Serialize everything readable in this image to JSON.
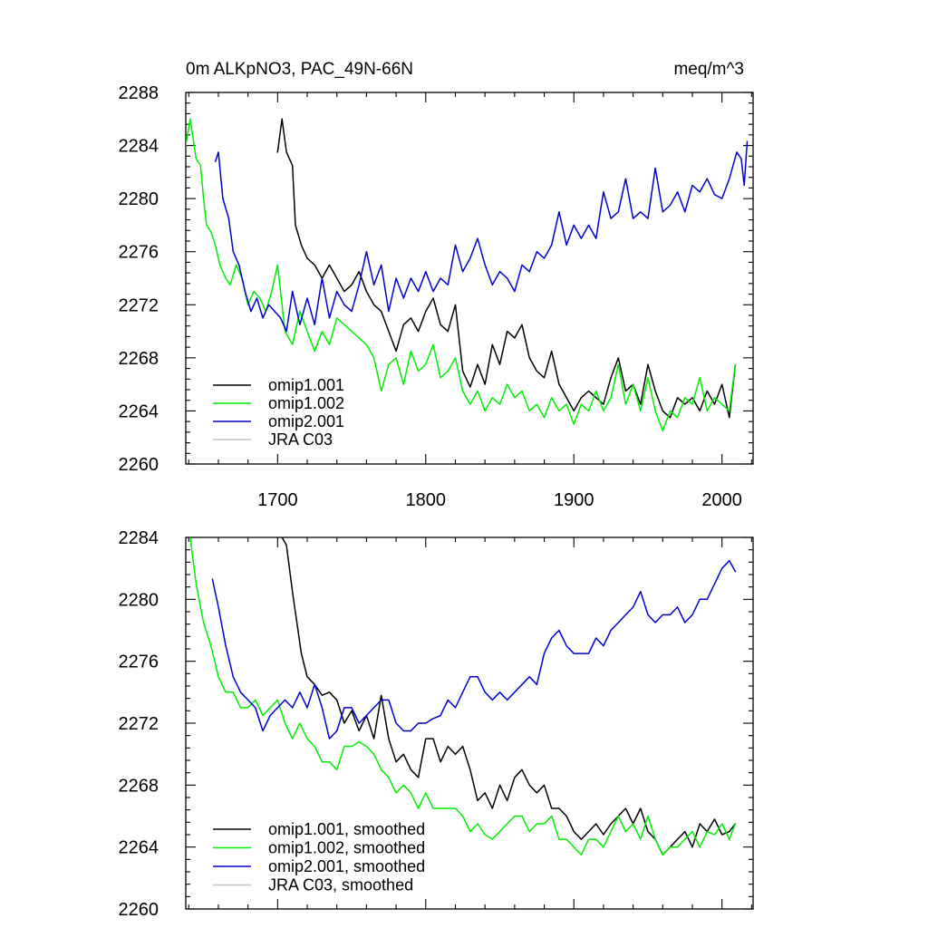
{
  "colors": {
    "omip1_001": "#000000",
    "omip1_002": "#00ee00",
    "omip2_001": "#0000cc",
    "jra_c03": "#c0c0c0"
  },
  "chart_data": [
    {
      "type": "line",
      "panel": "top",
      "title_left": "0m ALKpNO3, PAC_49N-66N",
      "title_right": "meq/m^3",
      "xlabel": "",
      "ylabel": "",
      "xlim": [
        1638,
        2021
      ],
      "ylim": [
        2260,
        2288
      ],
      "xticks": [
        1700,
        1800,
        1900,
        2000
      ],
      "xtick_labels": [
        "1700",
        "1800",
        "1900",
        "2000"
      ],
      "yticks": [
        2260,
        2264,
        2268,
        2272,
        2276,
        2280,
        2284,
        2288
      ],
      "ytick_labels": [
        "2260",
        "2264",
        "2268",
        "2272",
        "2276",
        "2280",
        "2284",
        "2288"
      ],
      "legend_position": "bottom-left",
      "series": [
        {
          "name": "omip1.001",
          "color_key": "omip1_001",
          "x": [
            1700,
            1703,
            1706,
            1710,
            1712,
            1716,
            1720,
            1725,
            1730,
            1735,
            1740,
            1745,
            1750,
            1755,
            1760,
            1765,
            1770,
            1775,
            1780,
            1785,
            1790,
            1795,
            1800,
            1805,
            1810,
            1815,
            1820,
            1825,
            1830,
            1835,
            1840,
            1845,
            1850,
            1855,
            1860,
            1865,
            1870,
            1875,
            1880,
            1885,
            1890,
            1895,
            1900,
            1905,
            1910,
            1915,
            1920,
            1925,
            1930,
            1935,
            1940,
            1945,
            1950,
            1955,
            1960,
            1965,
            1970,
            1975,
            1980,
            1985,
            1990,
            1995,
            2000,
            2005,
            2009
          ],
          "y": [
            2283.5,
            2286,
            2283.5,
            2282.5,
            2278,
            2276.5,
            2275.5,
            2275,
            2274,
            2275,
            2274,
            2273,
            2273.5,
            2274.5,
            2273,
            2272,
            2271.5,
            2270,
            2268.5,
            2270.5,
            2271,
            2270,
            2271.5,
            2272.5,
            2270.5,
            2270,
            2272,
            2267,
            2265.8,
            2267.5,
            2266,
            2269,
            2267.5,
            2270,
            2269.5,
            2270.5,
            2268,
            2267,
            2266.5,
            2268.5,
            2266,
            2265,
            2264,
            2265,
            2265.5,
            2265,
            2264.5,
            2266.5,
            2268,
            2265.5,
            2266,
            2264.5,
            2267.5,
            2265.5,
            2264,
            2263.5,
            2265,
            2264.5,
            2265,
            2264,
            2265.5,
            2264.5,
            2266,
            2263.5,
            2267.5
          ]
        },
        {
          "name": "omip1.002",
          "color_key": "omip1_002",
          "x": [
            1638,
            1641,
            1645,
            1648,
            1650,
            1652,
            1655,
            1658,
            1661,
            1665,
            1668,
            1672,
            1676,
            1680,
            1684,
            1688,
            1692,
            1696,
            1700,
            1705,
            1710,
            1715,
            1720,
            1725,
            1730,
            1735,
            1740,
            1745,
            1750,
            1755,
            1760,
            1765,
            1770,
            1775,
            1780,
            1785,
            1790,
            1795,
            1800,
            1805,
            1810,
            1815,
            1820,
            1825,
            1830,
            1835,
            1840,
            1845,
            1850,
            1855,
            1860,
            1865,
            1870,
            1875,
            1880,
            1885,
            1890,
            1895,
            1900,
            1905,
            1910,
            1915,
            1920,
            1925,
            1930,
            1935,
            1940,
            1945,
            1950,
            1955,
            1960,
            1965,
            1970,
            1975,
            1980,
            1985,
            1990,
            1995,
            2000,
            2005,
            2009
          ],
          "y": [
            2284,
            2286,
            2283,
            2282.5,
            2280,
            2278,
            2277.5,
            2276.5,
            2275,
            2274,
            2273.5,
            2275,
            2274,
            2272,
            2273,
            2272.5,
            2271.5,
            2273,
            2275,
            2270,
            2269,
            2271.5,
            2270,
            2268.5,
            2270,
            2269,
            2271,
            2270.5,
            2270,
            2269.5,
            2269,
            2268,
            2265.5,
            2267.5,
            2268,
            2266,
            2268.5,
            2267,
            2267.5,
            2269,
            2266.5,
            2267,
            2268,
            2265.5,
            2264.5,
            2265.5,
            2264,
            2265,
            2264.5,
            2266,
            2265,
            2265.5,
            2264,
            2264.5,
            2263.5,
            2265,
            2264,
            2264.5,
            2263,
            2264.5,
            2264,
            2265.5,
            2264,
            2265,
            2267.5,
            2264.5,
            2266,
            2264,
            2266.5,
            2264,
            2262.5,
            2264,
            2263.5,
            2265,
            2264.5,
            2266.5,
            2264,
            2265,
            2264.5,
            2264,
            2267.5
          ]
        },
        {
          "name": "omip2.001",
          "color_key": "omip2_001",
          "x": [
            1658,
            1660,
            1663,
            1667,
            1670,
            1674,
            1678,
            1682,
            1686,
            1690,
            1694,
            1698,
            1702,
            1706,
            1710,
            1715,
            1720,
            1725,
            1730,
            1735,
            1740,
            1745,
            1750,
            1755,
            1760,
            1765,
            1770,
            1775,
            1780,
            1785,
            1790,
            1795,
            1800,
            1805,
            1810,
            1815,
            1820,
            1825,
            1830,
            1835,
            1840,
            1845,
            1850,
            1855,
            1860,
            1865,
            1870,
            1875,
            1880,
            1885,
            1890,
            1895,
            1900,
            1905,
            1910,
            1915,
            1920,
            1925,
            1930,
            1935,
            1940,
            1945,
            1950,
            1955,
            1960,
            1965,
            1970,
            1975,
            1980,
            1985,
            1990,
            1995,
            2000,
            2005,
            2010,
            2013,
            2015,
            2017
          ],
          "y": [
            2282.8,
            2283.5,
            2280,
            2278.5,
            2276,
            2275,
            2273,
            2271.5,
            2272.5,
            2271,
            2272,
            2271.5,
            2271,
            2270,
            2273,
            2270.5,
            2272.5,
            2270.5,
            2274,
            2271,
            2273,
            2272,
            2271.5,
            2273.5,
            2276,
            2273.5,
            2275,
            2271.5,
            2274,
            2272.5,
            2274,
            2273,
            2274.5,
            2273,
            2274,
            2273.5,
            2276.5,
            2274.5,
            2275.5,
            2277,
            2275,
            2273.5,
            2274.5,
            2274,
            2273,
            2275,
            2274.5,
            2276,
            2275.5,
            2276.5,
            2279,
            2276.5,
            2278,
            2277,
            2278,
            2277,
            2280.5,
            2278.5,
            2279,
            2281.5,
            2278.5,
            2279,
            2278.5,
            2282.3,
            2279,
            2279.5,
            2280.5,
            2279,
            2281,
            2280.5,
            2281.5,
            2280.3,
            2280,
            2281.5,
            2283.5,
            2283,
            2281,
            2284.3
          ]
        },
        {
          "name": "JRA C03",
          "color_key": "jra_c03",
          "x": [],
          "y": []
        }
      ]
    },
    {
      "type": "line",
      "panel": "bottom",
      "title_left": "",
      "title_right": "",
      "xlabel": "",
      "ylabel": "",
      "xlim": [
        1638,
        2021
      ],
      "ylim": [
        2260,
        2284
      ],
      "xticks": [
        1700,
        1800,
        1900,
        2000
      ],
      "xtick_labels": [],
      "yticks": [
        2260,
        2264,
        2268,
        2272,
        2276,
        2280,
        2284
      ],
      "ytick_labels": [
        "2260",
        "2264",
        "2268",
        "2272",
        "2276",
        "2280",
        "2284"
      ],
      "legend_position": "bottom-left",
      "series": [
        {
          "name": "omip1.001, smoothed",
          "color_key": "omip1_001",
          "x": [
            1703,
            1706,
            1710,
            1713,
            1716,
            1720,
            1725,
            1730,
            1735,
            1740,
            1745,
            1750,
            1755,
            1760,
            1765,
            1770,
            1775,
            1780,
            1785,
            1790,
            1795,
            1800,
            1805,
            1810,
            1815,
            1820,
            1825,
            1830,
            1835,
            1840,
            1845,
            1850,
            1855,
            1860,
            1865,
            1870,
            1875,
            1880,
            1885,
            1890,
            1895,
            1900,
            1905,
            1910,
            1915,
            1920,
            1925,
            1930,
            1935,
            1940,
            1945,
            1950,
            1955,
            1960,
            1965,
            1970,
            1975,
            1980,
            1985,
            1990,
            1995,
            2000,
            2005,
            2009
          ],
          "y": [
            2284,
            2283.5,
            2280.5,
            2278.5,
            2276.5,
            2275,
            2274.5,
            2273.8,
            2274,
            2273.5,
            2272,
            2272.8,
            2271.5,
            2272.5,
            2271,
            2273.8,
            2271,
            2269.5,
            2270,
            2269,
            2268.5,
            2271,
            2271,
            2269.5,
            2270.5,
            2270,
            2270.5,
            2269,
            2267,
            2267.5,
            2266.5,
            2268,
            2267,
            2268.5,
            2269,
            2268,
            2267.5,
            2268,
            2266.5,
            2266.5,
            2266,
            2265,
            2264.5,
            2265,
            2265.5,
            2264.8,
            2265.5,
            2266,
            2266.5,
            2265.5,
            2266.5,
            2265,
            2264.5,
            2263.5,
            2264,
            2264.5,
            2265,
            2264,
            2265.5,
            2265,
            2265.8,
            2264.8,
            2265,
            2265.5
          ]
        },
        {
          "name": "omip1.002, smoothed",
          "color_key": "omip1_002",
          "x": [
            1641,
            1645,
            1650,
            1655,
            1660,
            1665,
            1670,
            1675,
            1680,
            1685,
            1690,
            1695,
            1700,
            1705,
            1710,
            1715,
            1720,
            1725,
            1730,
            1735,
            1740,
            1745,
            1750,
            1755,
            1760,
            1765,
            1770,
            1775,
            1780,
            1785,
            1790,
            1795,
            1800,
            1805,
            1810,
            1815,
            1820,
            1825,
            1830,
            1835,
            1840,
            1845,
            1850,
            1855,
            1860,
            1865,
            1870,
            1875,
            1880,
            1885,
            1890,
            1895,
            1900,
            1905,
            1910,
            1915,
            1920,
            1925,
            1930,
            1935,
            1940,
            1945,
            1950,
            1955,
            1960,
            1965,
            1970,
            1975,
            1980,
            1985,
            1990,
            1995,
            2000,
            2005,
            2009
          ],
          "y": [
            2284,
            2281,
            2278.5,
            2277,
            2275,
            2274,
            2274,
            2273,
            2273,
            2273.5,
            2272.5,
            2273,
            2273.5,
            2272,
            2271,
            2272,
            2271,
            2270.5,
            2269.5,
            2269.5,
            2269,
            2270.5,
            2270.5,
            2270.8,
            2270.5,
            2270,
            2269,
            2268.5,
            2267.5,
            2268,
            2267.5,
            2266.5,
            2267.5,
            2266.5,
            2266.5,
            2266.5,
            2266.5,
            2266,
            2265,
            2265.5,
            2264.8,
            2264.5,
            2265,
            2265.5,
            2266,
            2266,
            2265,
            2265.5,
            2265.5,
            2266,
            2264.5,
            2264.5,
            2264,
            2263.5,
            2264.5,
            2264.5,
            2264,
            2265,
            2266,
            2265,
            2265.5,
            2264.5,
            2266,
            2264.5,
            2263.5,
            2264,
            2264,
            2264.5,
            2265,
            2264,
            2265,
            2264.8,
            2265.5,
            2264.5,
            2265.5
          ]
        },
        {
          "name": "omip2.001, smoothed",
          "color_key": "omip2_001",
          "x": [
            1656,
            1660,
            1665,
            1670,
            1675,
            1680,
            1685,
            1690,
            1695,
            1700,
            1705,
            1710,
            1715,
            1720,
            1725,
            1730,
            1735,
            1740,
            1745,
            1750,
            1755,
            1760,
            1765,
            1770,
            1775,
            1780,
            1785,
            1790,
            1795,
            1800,
            1805,
            1810,
            1815,
            1820,
            1825,
            1830,
            1835,
            1840,
            1845,
            1850,
            1855,
            1860,
            1865,
            1870,
            1875,
            1880,
            1885,
            1890,
            1895,
            1900,
            1905,
            1910,
            1915,
            1920,
            1925,
            1930,
            1935,
            1940,
            1945,
            1950,
            1955,
            1960,
            1965,
            1970,
            1975,
            1980,
            1985,
            1990,
            1995,
            2000,
            2005,
            2009
          ],
          "y": [
            2281.3,
            2279.5,
            2277,
            2275,
            2274,
            2273.5,
            2273,
            2271.5,
            2272.5,
            2273,
            2273.5,
            2273,
            2274,
            2273,
            2274.5,
            2273,
            2271,
            2271.5,
            2273,
            2273,
            2272,
            2272.5,
            2273,
            2273.5,
            2273.5,
            2272,
            2271.5,
            2271.5,
            2272,
            2272,
            2272.3,
            2272.5,
            2273.5,
            2273,
            2274,
            2275,
            2275,
            2274,
            2273.5,
            2274,
            2273.5,
            2274,
            2274.5,
            2275,
            2274.5,
            2276.5,
            2277.5,
            2278,
            2277,
            2276.5,
            2276.5,
            2276.5,
            2277.5,
            2277,
            2278,
            2278.5,
            2279,
            2279.5,
            2280.5,
            2279,
            2278.5,
            2279,
            2279,
            2279.5,
            2278.5,
            2279,
            2280,
            2280,
            2281,
            2282,
            2282.5,
            2281.8
          ]
        },
        {
          "name": "JRA C03, smoothed",
          "color_key": "jra_c03",
          "x": [],
          "y": []
        }
      ]
    }
  ]
}
